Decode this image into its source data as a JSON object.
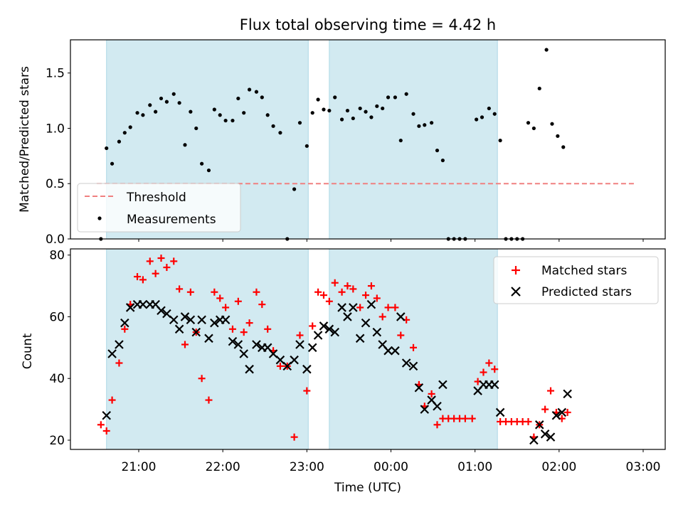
{
  "title": "Flux total observing time = 4.42 h",
  "colors": {
    "span": "#add8e6",
    "threshold": "#f08080",
    "matched": "#ff0000",
    "predicted": "#000000",
    "measurement": "#000000"
  },
  "chart_data": [
    {
      "type": "scatter",
      "ylabel": "Matched/Predicted stars",
      "ylim": [
        0,
        1.8
      ],
      "y_ticks": [
        0.0,
        0.5,
        1.0,
        1.5
      ],
      "y_tick_labels": [
        "0.0",
        "0.5",
        "1.0",
        "1.5"
      ],
      "grid": false,
      "legend": "lower-left",
      "highlight_spans": [
        [
          "20:37",
          "23:01"
        ],
        [
          "23:16",
          "01:16"
        ]
      ],
      "threshold": {
        "name": "Threshold",
        "value": 0.5,
        "x_range": [
          "20:30",
          "02:55"
        ]
      },
      "series": [
        {
          "name": "Measurements",
          "points": [
            [
              "20:33",
              0.0
            ],
            [
              "20:37",
              0.82
            ],
            [
              "20:41",
              0.68
            ],
            [
              "20:46",
              0.88
            ],
            [
              "20:50",
              0.96
            ],
            [
              "20:54",
              1.01
            ],
            [
              "20:59",
              1.14
            ],
            [
              "21:03",
              1.12
            ],
            [
              "21:08",
              1.21
            ],
            [
              "21:12",
              1.15
            ],
            [
              "21:16",
              1.27
            ],
            [
              "21:20",
              1.24
            ],
            [
              "21:25",
              1.31
            ],
            [
              "21:29",
              1.23
            ],
            [
              "21:33",
              0.85
            ],
            [
              "21:37",
              1.15
            ],
            [
              "21:41",
              1.0
            ],
            [
              "21:45",
              0.68
            ],
            [
              "21:50",
              0.62
            ],
            [
              "21:54",
              1.17
            ],
            [
              "21:58",
              1.12
            ],
            [
              "22:02",
              1.07
            ],
            [
              "22:07",
              1.07
            ],
            [
              "22:11",
              1.27
            ],
            [
              "22:15",
              1.14
            ],
            [
              "22:19",
              1.35
            ],
            [
              "22:24",
              1.33
            ],
            [
              "22:28",
              1.28
            ],
            [
              "22:32",
              1.12
            ],
            [
              "22:36",
              1.02
            ],
            [
              "22:41",
              0.96
            ],
            [
              "22:46",
              0.0
            ],
            [
              "22:51",
              0.45
            ],
            [
              "22:55",
              1.05
            ],
            [
              "23:00",
              0.84
            ],
            [
              "23:04",
              1.14
            ],
            [
              "23:08",
              1.26
            ],
            [
              "23:12",
              1.17
            ],
            [
              "23:16",
              1.16
            ],
            [
              "23:20",
              1.28
            ],
            [
              "23:25",
              1.08
            ],
            [
              "23:29",
              1.16
            ],
            [
              "23:33",
              1.09
            ],
            [
              "23:38",
              1.18
            ],
            [
              "23:42",
              1.15
            ],
            [
              "23:46",
              1.1
            ],
            [
              "23:50",
              1.2
            ],
            [
              "23:54",
              1.18
            ],
            [
              "23:58",
              1.28
            ],
            [
              "00:03",
              1.28
            ],
            [
              "00:07",
              0.89
            ],
            [
              "00:11",
              1.31
            ],
            [
              "00:16",
              1.13
            ],
            [
              "00:20",
              1.02
            ],
            [
              "00:24",
              1.03
            ],
            [
              "00:29",
              1.05
            ],
            [
              "00:33",
              0.8
            ],
            [
              "00:37",
              0.71
            ],
            [
              "00:41",
              0.0
            ],
            [
              "00:45",
              0.0
            ],
            [
              "00:49",
              0.0
            ],
            [
              "00:53",
              0.0
            ],
            [
              "01:01",
              1.08
            ],
            [
              "01:05",
              1.1
            ],
            [
              "01:10",
              1.18
            ],
            [
              "01:14",
              1.13
            ],
            [
              "01:18",
              0.89
            ],
            [
              "01:22",
              0.0
            ],
            [
              "01:26",
              0.0
            ],
            [
              "01:30",
              0.0
            ],
            [
              "01:34",
              0.0
            ],
            [
              "01:38",
              1.05
            ],
            [
              "01:42",
              1.0
            ],
            [
              "01:46",
              1.36
            ],
            [
              "01:51",
              1.71
            ],
            [
              "01:55",
              1.04
            ],
            [
              "01:59",
              0.93
            ],
            [
              "02:03",
              0.83
            ]
          ]
        }
      ]
    },
    {
      "type": "scatter",
      "xlabel": "Time (UTC)",
      "ylabel": "Count",
      "ylim": [
        17,
        82
      ],
      "x_ticks": [
        "21:00",
        "22:00",
        "23:00",
        "00:00",
        "01:00",
        "02:00",
        "03:00"
      ],
      "y_ticks": [
        20,
        40,
        60,
        80
      ],
      "y_tick_labels": [
        "20",
        "40",
        "60",
        "80"
      ],
      "grid": false,
      "legend": "top-right",
      "highlight_spans": [
        [
          "20:37",
          "23:01"
        ],
        [
          "23:16",
          "01:16"
        ]
      ],
      "series": [
        {
          "name": "Matched stars",
          "marker": "plus",
          "points": [
            [
              "20:33",
              25
            ],
            [
              "20:37",
              23
            ],
            [
              "20:41",
              33
            ],
            [
              "20:46",
              45
            ],
            [
              "20:50",
              56
            ],
            [
              "20:54",
              64
            ],
            [
              "20:59",
              73
            ],
            [
              "21:03",
              72
            ],
            [
              "21:08",
              78
            ],
            [
              "21:12",
              74
            ],
            [
              "21:16",
              79
            ],
            [
              "21:20",
              76
            ],
            [
              "21:25",
              78
            ],
            [
              "21:29",
              69
            ],
            [
              "21:33",
              51
            ],
            [
              "21:37",
              68
            ],
            [
              "21:41",
              55
            ],
            [
              "21:45",
              40
            ],
            [
              "21:50",
              33
            ],
            [
              "21:54",
              68
            ],
            [
              "21:58",
              66
            ],
            [
              "22:02",
              63
            ],
            [
              "22:07",
              56
            ],
            [
              "22:11",
              65
            ],
            [
              "22:15",
              55
            ],
            [
              "22:19",
              58
            ],
            [
              "22:24",
              68
            ],
            [
              "22:28",
              64
            ],
            [
              "22:32",
              56
            ],
            [
              "22:36",
              49
            ],
            [
              "22:41",
              44
            ],
            [
              "22:46",
              44
            ],
            [
              "22:51",
              21
            ],
            [
              "22:55",
              54
            ],
            [
              "23:00",
              36
            ],
            [
              "23:04",
              57
            ],
            [
              "23:08",
              68
            ],
            [
              "23:12",
              67
            ],
            [
              "23:16",
              65
            ],
            [
              "23:20",
              71
            ],
            [
              "23:25",
              68
            ],
            [
              "23:29",
              70
            ],
            [
              "23:33",
              69
            ],
            [
              "23:38",
              63
            ],
            [
              "23:42",
              67
            ],
            [
              "23:46",
              70
            ],
            [
              "23:50",
              66
            ],
            [
              "23:54",
              60
            ],
            [
              "23:58",
              63
            ],
            [
              "00:03",
              63
            ],
            [
              "00:07",
              54
            ],
            [
              "00:11",
              59
            ],
            [
              "00:16",
              50
            ],
            [
              "00:20",
              38
            ],
            [
              "00:24",
              31
            ],
            [
              "00:29",
              35
            ],
            [
              "00:33",
              25
            ],
            [
              "00:37",
              27
            ],
            [
              "00:41",
              27
            ],
            [
              "00:45",
              27
            ],
            [
              "00:49",
              27
            ],
            [
              "00:53",
              27
            ],
            [
              "00:58",
              27
            ],
            [
              "01:02",
              39
            ],
            [
              "01:06",
              42
            ],
            [
              "01:10",
              45
            ],
            [
              "01:14",
              43
            ],
            [
              "01:18",
              26
            ],
            [
              "01:22",
              26
            ],
            [
              "01:26",
              26
            ],
            [
              "01:30",
              26
            ],
            [
              "01:34",
              26
            ],
            [
              "01:38",
              26
            ],
            [
              "01:42",
              21
            ],
            [
              "01:46",
              25
            ],
            [
              "01:50",
              30
            ],
            [
              "01:54",
              36
            ],
            [
              "01:58",
              29
            ],
            [
              "02:02",
              27
            ],
            [
              "02:06",
              29
            ]
          ]
        },
        {
          "name": "Predicted stars",
          "marker": "x",
          "points": [
            [
              "20:37",
              28
            ],
            [
              "20:41",
              48
            ],
            [
              "20:46",
              51
            ],
            [
              "20:50",
              58
            ],
            [
              "20:54",
              63
            ],
            [
              "20:59",
              64
            ],
            [
              "21:03",
              64
            ],
            [
              "21:08",
              64
            ],
            [
              "21:12",
              64
            ],
            [
              "21:16",
              62
            ],
            [
              "21:20",
              61
            ],
            [
              "21:25",
              59
            ],
            [
              "21:29",
              56
            ],
            [
              "21:33",
              60
            ],
            [
              "21:37",
              59
            ],
            [
              "21:41",
              55
            ],
            [
              "21:45",
              59
            ],
            [
              "21:50",
              53
            ],
            [
              "21:54",
              58
            ],
            [
              "21:58",
              59
            ],
            [
              "22:02",
              59
            ],
            [
              "22:07",
              52
            ],
            [
              "22:11",
              51
            ],
            [
              "22:15",
              48
            ],
            [
              "22:19",
              43
            ],
            [
              "22:24",
              51
            ],
            [
              "22:28",
              50
            ],
            [
              "22:32",
              50
            ],
            [
              "22:36",
              48
            ],
            [
              "22:41",
              46
            ],
            [
              "22:46",
              44
            ],
            [
              "22:51",
              46
            ],
            [
              "22:55",
              51
            ],
            [
              "23:00",
              43
            ],
            [
              "23:04",
              50
            ],
            [
              "23:08",
              54
            ],
            [
              "23:12",
              57
            ],
            [
              "23:16",
              56
            ],
            [
              "23:20",
              55
            ],
            [
              "23:25",
              63
            ],
            [
              "23:29",
              60
            ],
            [
              "23:33",
              63
            ],
            [
              "23:38",
              53
            ],
            [
              "23:42",
              58
            ],
            [
              "23:46",
              64
            ],
            [
              "23:50",
              55
            ],
            [
              "23:54",
              51
            ],
            [
              "23:58",
              49
            ],
            [
              "00:03",
              49
            ],
            [
              "00:07",
              60
            ],
            [
              "00:11",
              45
            ],
            [
              "00:16",
              44
            ],
            [
              "00:20",
              37
            ],
            [
              "00:24",
              30
            ],
            [
              "00:29",
              33
            ],
            [
              "00:33",
              31
            ],
            [
              "00:37",
              38
            ],
            [
              "01:02",
              36
            ],
            [
              "01:06",
              38
            ],
            [
              "01:10",
              38
            ],
            [
              "01:14",
              38
            ],
            [
              "01:18",
              29
            ],
            [
              "01:42",
              20
            ],
            [
              "01:46",
              25
            ],
            [
              "01:50",
              22
            ],
            [
              "01:54",
              21
            ],
            [
              "01:58",
              28
            ],
            [
              "02:02",
              29
            ],
            [
              "02:06",
              35
            ]
          ]
        }
      ]
    }
  ]
}
